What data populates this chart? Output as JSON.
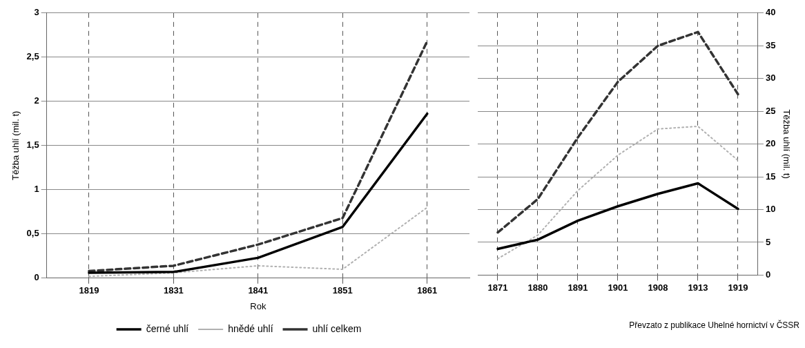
{
  "chart_data": [
    {
      "type": "line",
      "xlabel": "Rok",
      "ylabel": "Těžba uhlí (mil. t)",
      "categories": [
        "1819",
        "1831",
        "1841",
        "1851",
        "1861"
      ],
      "ylim": [
        0,
        3
      ],
      "yticks": [
        0,
        {
          "value": 0.5,
          "label": "0,5"
        },
        1,
        {
          "value": 1.5,
          "label": "1,5"
        },
        2,
        {
          "value": 2.5,
          "label": "2,5"
        },
        3
      ],
      "grid": true,
      "legend": "bottom",
      "marker": "none",
      "series": [
        {
          "name": "černé uhlí",
          "color": "#000000",
          "line_style": "solid",
          "values": [
            0.06,
            0.07,
            0.23,
            0.58,
            1.86
          ]
        },
        {
          "name": "hnědé uhlí",
          "color": "#b0b0b0",
          "line_style": "dotted",
          "values": [
            0.02,
            0.06,
            0.14,
            0.1,
            0.8
          ]
        },
        {
          "name": "uhlí celkem",
          "color": "#333333",
          "line_style": "dashed",
          "values": [
            0.08,
            0.14,
            0.38,
            0.68,
            2.68
          ]
        }
      ]
    },
    {
      "type": "line",
      "y2label": "Těžba uhlí (mil. t)",
      "categories": [
        "1871",
        "1880",
        "1891",
        "1901",
        "1908",
        "1913",
        "1919"
      ],
      "y2lim": [
        0,
        40
      ],
      "y2ticks": [
        0,
        5,
        10,
        15,
        20,
        25,
        30,
        35,
        40
      ],
      "grid": true,
      "legend": false,
      "marker": "none",
      "annotations": [
        "Převzato z publikace Uhelné hornictví v ČSSR"
      ],
      "series": [
        {
          "color": "#000000",
          "line_style": "solid",
          "axis": "y2",
          "values": [
            4.0,
            5.4,
            8.3,
            10.5,
            12.4,
            14.0,
            10.1
          ]
        },
        {
          "color": "#b0b0b0",
          "line_style": "dotted",
          "axis": "y2",
          "values": [
            2.5,
            6.1,
            12.9,
            18.3,
            22.3,
            22.7,
            17.5
          ]
        },
        {
          "color": "#333333",
          "line_style": "dashed",
          "axis": "y2",
          "values": [
            6.5,
            11.6,
            21.0,
            29.5,
            35.0,
            37.1,
            27.6
          ]
        }
      ]
    }
  ]
}
